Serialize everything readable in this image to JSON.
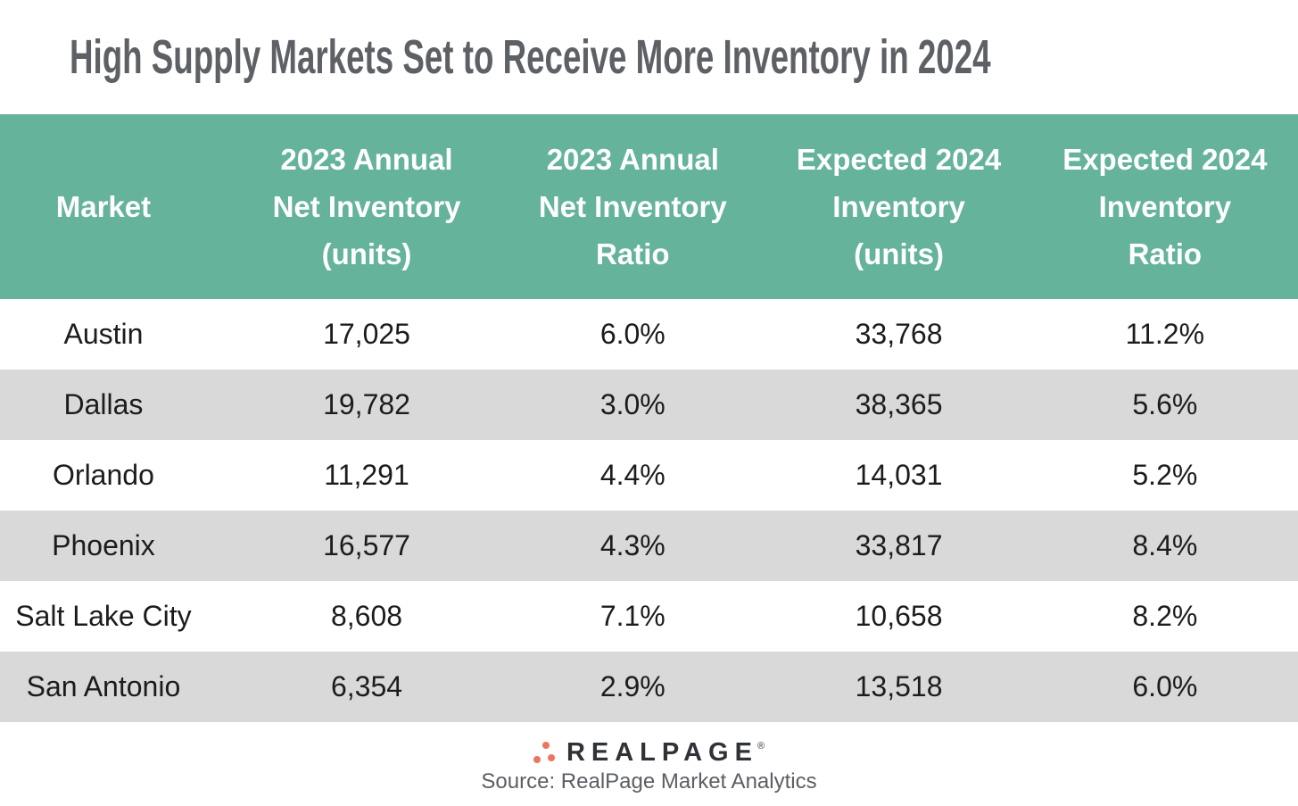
{
  "title": "High Supply Markets Set to Receive More Inventory in 2024",
  "colors": {
    "header_bg": "#65B39A",
    "header_text": "#FFFFFF",
    "row_alt_bg": "#D9D9D9",
    "row_bg": "#FFFFFF",
    "body_text": "#1C1C1C",
    "title_text": "#5D6165",
    "logo_dot_orange": "#ED7560",
    "logo_text": "#2F3237",
    "source_text": "#5B5E63"
  },
  "table": {
    "columns": [
      {
        "lines": [
          "Market"
        ]
      },
      {
        "lines": [
          "2023 Annual",
          "Net Inventory",
          "(units)"
        ]
      },
      {
        "lines": [
          "2023 Annual",
          "Net Inventory",
          "Ratio"
        ]
      },
      {
        "lines": [
          "Expected 2024",
          "Inventory",
          "(units)"
        ]
      },
      {
        "lines": [
          "Expected 2024",
          "Inventory",
          "Ratio"
        ]
      }
    ],
    "rows": [
      {
        "cells": [
          "Austin",
          "17,025",
          "6.0%",
          "33,768",
          "11.2%"
        ]
      },
      {
        "cells": [
          "Dallas",
          "19,782",
          "3.0%",
          "38,365",
          "5.6%"
        ]
      },
      {
        "cells": [
          "Orlando",
          "11,291",
          "4.4%",
          "14,031",
          "5.2%"
        ]
      },
      {
        "cells": [
          "Phoenix",
          "16,577",
          "4.3%",
          "33,817",
          "8.4%"
        ]
      },
      {
        "cells": [
          "Salt Lake City",
          "8,608",
          "7.1%",
          "10,658",
          "8.2%"
        ]
      },
      {
        "cells": [
          "San Antonio",
          "6,354",
          "2.9%",
          "13,518",
          "6.0%"
        ]
      }
    ]
  },
  "footer": {
    "logo_text": "REALPAGE",
    "logo_mark": "®",
    "source": "Source: RealPage Market Analytics"
  },
  "chart_data": {
    "type": "table",
    "title": "High Supply Markets Set to Receive More Inventory in 2024",
    "columns": [
      "Market",
      "2023 Annual Net Inventory (units)",
      "2023 Annual Net Inventory Ratio",
      "Expected 2024 Inventory (units)",
      "Expected 2024 Inventory Ratio"
    ],
    "rows": [
      [
        "Austin",
        17025,
        "6.0%",
        33768,
        "11.2%"
      ],
      [
        "Dallas",
        19782,
        "3.0%",
        38365,
        "5.6%"
      ],
      [
        "Orlando",
        11291,
        "4.4%",
        14031,
        "5.2%"
      ],
      [
        "Phoenix",
        16577,
        "4.3%",
        33817,
        "8.4%"
      ],
      [
        "Salt Lake City",
        8608,
        "7.1%",
        10658,
        "8.2%"
      ],
      [
        "San Antonio",
        6354,
        "2.9%",
        13518,
        "6.0%"
      ]
    ],
    "source": "Source: RealPage Market Analytics",
    "layout": {
      "header_style": "teal band, white bold text",
      "row_striping": "white / light gray alternating starting white",
      "alignment": "all columns center-aligned"
    }
  }
}
